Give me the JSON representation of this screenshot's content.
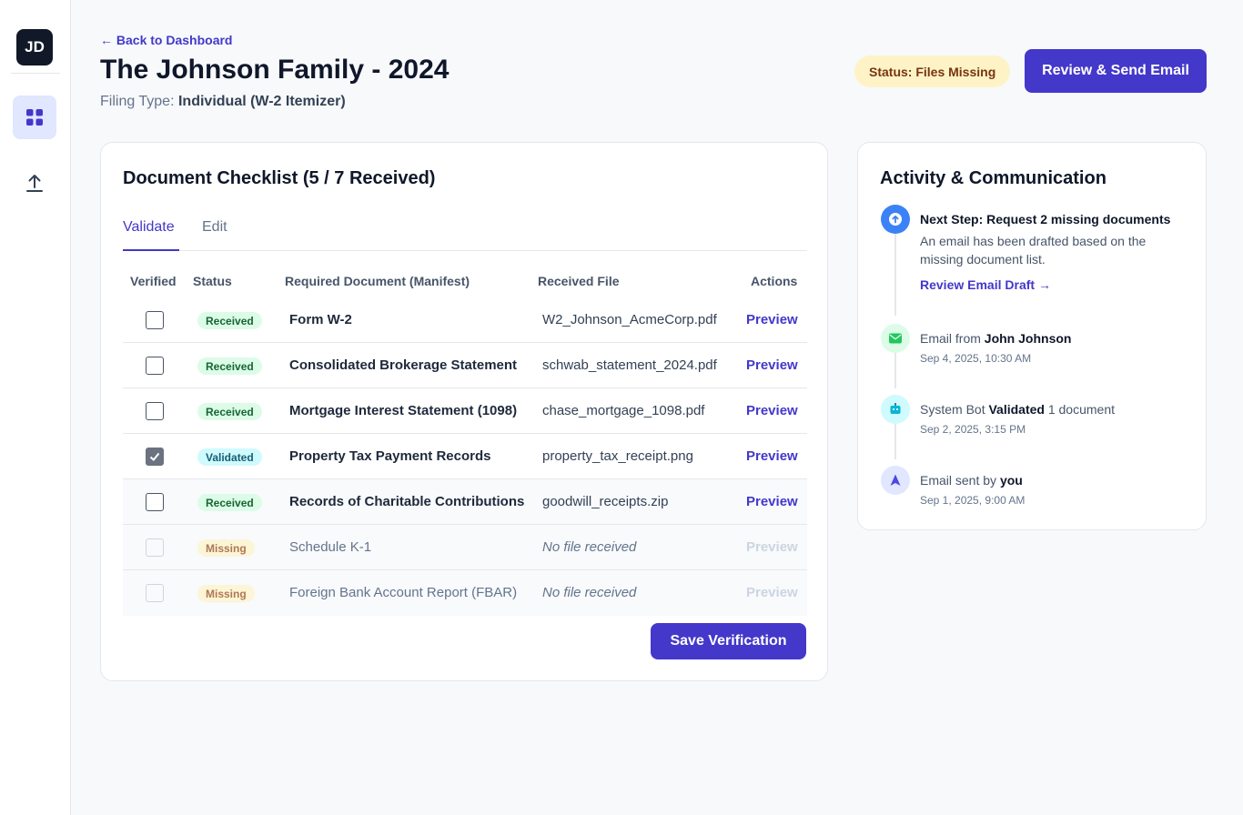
{
  "sidebar": {
    "avatar": "JD",
    "items": [
      {
        "name": "dashboard",
        "icon": "grid-icon"
      },
      {
        "name": "upload",
        "icon": "upload-icon"
      }
    ]
  },
  "header": {
    "back_link": "← Back to Dashboard",
    "title": "The Johnson Family - 2024",
    "filing_label": "Filing Type:",
    "filing_value": "Individual (W-2 Itemizer)",
    "status": "Status: Files Missing",
    "primary_action": "Review & Send Email"
  },
  "checklist": {
    "title": "Document Checklist (5 / 7 Received)",
    "tabs": [
      "Validate",
      "Edit"
    ],
    "active_tab": "Validate",
    "columns": [
      "Verified",
      "Status",
      "Required Document (Manifest)",
      "Received File",
      "Actions"
    ],
    "rows": [
      {
        "verified": false,
        "status": "Received",
        "document": "Form W-2",
        "file": "W2_Johnson_AcmeCorp.pdf",
        "action": "Preview"
      },
      {
        "verified": false,
        "status": "Received",
        "document": "Consolidated Brokerage Statement",
        "file": "schwab_statement_2024.pdf",
        "action": "Preview"
      },
      {
        "verified": false,
        "status": "Received",
        "document": "Mortgage Interest Statement (1098)",
        "file": "chase_mortgage_1098.pdf",
        "action": "Preview"
      },
      {
        "verified": true,
        "status": "Validated",
        "document": "Property Tax Payment Records",
        "file": "property_tax_receipt.png",
        "action": "Preview"
      },
      {
        "verified": false,
        "status": "Received",
        "document": "Records of Charitable Contributions",
        "file": "goodwill_receipts.zip",
        "action": "Preview"
      },
      {
        "verified": false,
        "status": "Missing",
        "document": "Schedule K-1",
        "file": "No file received",
        "action": "Preview"
      },
      {
        "verified": false,
        "status": "Missing",
        "document": "Foreign Bank Account Report (FBAR)",
        "file": "No file received",
        "action": "Preview"
      }
    ],
    "save_label": "Save Verification"
  },
  "activity": {
    "title": "Activity & Communication",
    "next_step": {
      "title": "Next Step: Request 2 missing documents",
      "description": "An email has been drafted based on the missing document list.",
      "link": "Review Email Draft →"
    },
    "events": [
      {
        "prefix": "Email from",
        "actor": "John Johnson",
        "suffix": "",
        "date": "Sep 4, 2025, 10:30 AM",
        "icon": "mail-icon"
      },
      {
        "prefix": "System Bot",
        "actor": "Validated",
        "suffix": "1 document",
        "date": "Sep 2, 2025, 3:15 PM",
        "icon": "robot-icon"
      },
      {
        "prefix": "Email sent by",
        "actor": "you",
        "suffix": "",
        "date": "Sep 1, 2025, 9:00 AM",
        "icon": "send-icon"
      }
    ]
  }
}
